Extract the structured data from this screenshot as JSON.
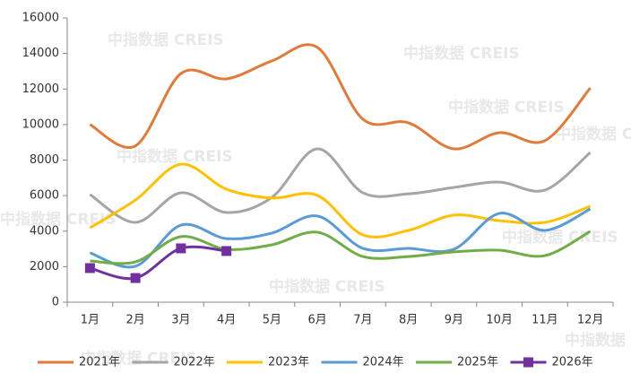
{
  "chart_data": {
    "type": "line",
    "watermark": "中指数据 CREIS",
    "categories": [
      "1月",
      "2月",
      "3月",
      "4月",
      "5月",
      "6月",
      "7月",
      "8月",
      "9月",
      "10月",
      "11月",
      "12月"
    ],
    "ylim": [
      0,
      16000
    ],
    "yticks": [
      0,
      2000,
      4000,
      6000,
      8000,
      10000,
      12000,
      14000,
      16000
    ],
    "legend": "bottom",
    "smooth": true,
    "series": [
      {
        "name": "2021年",
        "color": "#e07b39",
        "values": [
          10000,
          8800,
          12870,
          12570,
          13580,
          14340,
          10300,
          10100,
          8630,
          9540,
          9090,
          12060
        ]
      },
      {
        "name": "2022年",
        "color": "#a5a5a5",
        "values": [
          6060,
          4490,
          6160,
          5050,
          5900,
          8630,
          6160,
          6100,
          6460,
          6760,
          6310,
          8430
        ]
      },
      {
        "name": "2023年",
        "color": "#ffc000",
        "values": [
          4190,
          5750,
          7770,
          6360,
          5860,
          6010,
          3790,
          4040,
          4900,
          4590,
          4490,
          5400
        ]
      },
      {
        "name": "2024年",
        "color": "#5b9bd5",
        "values": [
          2780,
          2020,
          4340,
          3580,
          3890,
          4850,
          3030,
          3030,
          2980,
          5000,
          4040,
          5250
        ]
      },
      {
        "name": "2025年",
        "color": "#70ad47",
        "values": [
          2320,
          2270,
          3690,
          2980,
          3230,
          3940,
          2570,
          2570,
          2830,
          2930,
          2620,
          3990
        ]
      },
      {
        "name": "2026年",
        "color": "#7030a0",
        "marker": "square",
        "values": [
          1920,
          1360,
          3030,
          2880,
          null,
          null,
          null,
          null,
          null,
          null,
          null,
          null
        ]
      }
    ]
  }
}
